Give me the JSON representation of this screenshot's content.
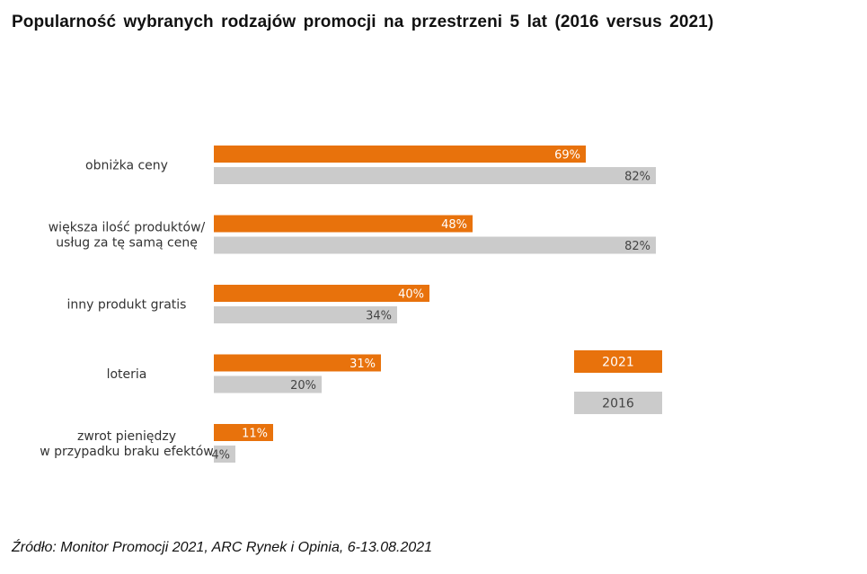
{
  "title": "Popularność  wybranych rodzajów  promocji  na przestrzeni 5 lat (2016 versus 2021)",
  "source": "Źródło: Monitor Promocji 2021, ARC Rynek i Opinia, 6-13.08.2021",
  "colors": {
    "s2021": "#E8720C",
    "s2016": "#CBCBCB",
    "label_on_orange": "#ffffff",
    "label_on_gray": "#444444"
  },
  "chart_data": {
    "type": "bar",
    "orientation": "horizontal",
    "title": "Popularność  wybranych rodzajów  promocji  na przestrzeni 5 lat (2016 versus 2021)",
    "unit": "%",
    "xlim": [
      0,
      100
    ],
    "categories": [
      [
        "obniżka ceny"
      ],
      [
        "większa ilość produktów/",
        "usług za tę samą cenę"
      ],
      [
        "inny produkt gratis"
      ],
      [
        "loteria"
      ],
      [
        "zwrot pieniędzy",
        "w przypadku braku efektów"
      ]
    ],
    "series": [
      {
        "name": "2021",
        "values": [
          69,
          48,
          40,
          31,
          11
        ],
        "labels": [
          "69%",
          "48%",
          "40%",
          "31%",
          "11%"
        ]
      },
      {
        "name": "2016",
        "values": [
          82,
          82,
          34,
          20,
          4
        ],
        "labels": [
          "82%",
          "82%",
          "34%",
          "20%",
          "4%"
        ]
      }
    ],
    "legend": [
      "2021",
      "2016"
    ],
    "legend_position": "right"
  }
}
